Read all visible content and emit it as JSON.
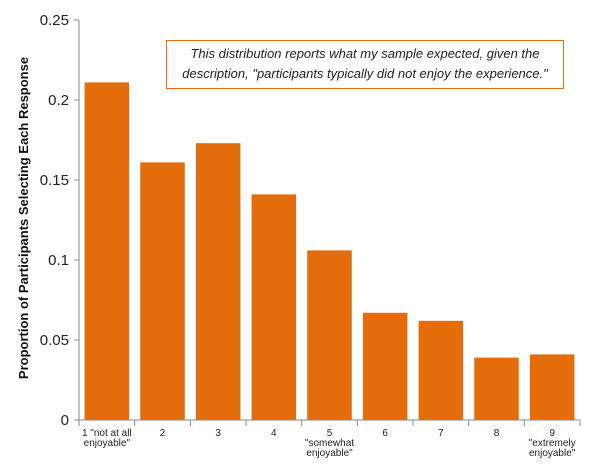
{
  "chart_data": {
    "type": "bar",
    "categories": [
      [
        "1 \"not at all",
        "enjoyable\""
      ],
      [
        "2"
      ],
      [
        "3"
      ],
      [
        "4"
      ],
      [
        "5",
        "\"somewhat",
        "enjoyable\""
      ],
      [
        "6"
      ],
      [
        "7"
      ],
      [
        "8"
      ],
      [
        "9",
        "\"extremely",
        "enjoyable\""
      ]
    ],
    "values": [
      0.211,
      0.161,
      0.173,
      0.141,
      0.106,
      0.067,
      0.062,
      0.039,
      0.041
    ],
    "ylabel": "Proportion of Participants Selecting Each Response",
    "ylim": [
      0,
      0.25
    ],
    "yticks": [
      {
        "value": 0,
        "label": "0"
      },
      {
        "value": 0.05,
        "label": "0.05"
      },
      {
        "value": 0.1,
        "label": "0.1"
      },
      {
        "value": 0.15,
        "label": "0.15"
      },
      {
        "value": 0.2,
        "label": "0.2"
      },
      {
        "value": 0.25,
        "label": "0.25"
      }
    ],
    "bar_color": "#E46C0A",
    "grid": false,
    "annotation": "This distribution reports what my sample expected, given the description, \"participants typically did not enjoy the experience.\""
  }
}
